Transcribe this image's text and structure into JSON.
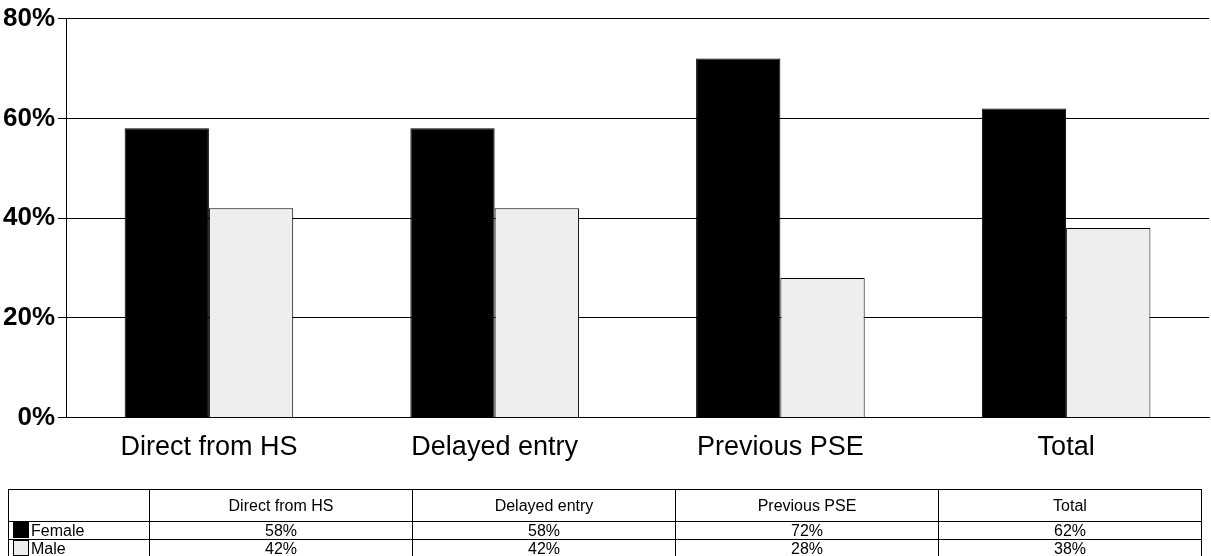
{
  "chart_data": {
    "type": "bar",
    "categories": [
      "Direct from HS",
      "Delayed entry",
      "Previous PSE",
      "Total"
    ],
    "series": [
      {
        "name": "Female",
        "color": "#000000",
        "values": [
          58,
          58,
          72,
          62
        ],
        "value_labels": [
          "58%",
          "58%",
          "72%",
          "62%"
        ]
      },
      {
        "name": "Male",
        "color": "#eeeeee",
        "values": [
          42,
          42,
          28,
          38
        ],
        "value_labels": [
          "42%",
          "42%",
          "28%",
          "38%"
        ]
      }
    ],
    "ylim": [
      0,
      80
    ],
    "yticks": [
      {
        "value": 0,
        "label": "0%"
      },
      {
        "value": 20,
        "label": "20%"
      },
      {
        "value": 40,
        "label": "40%"
      },
      {
        "value": 60,
        "label": "60%"
      },
      {
        "value": 80,
        "label": "80%"
      }
    ],
    "grid": "y",
    "legend": "bottom"
  }
}
